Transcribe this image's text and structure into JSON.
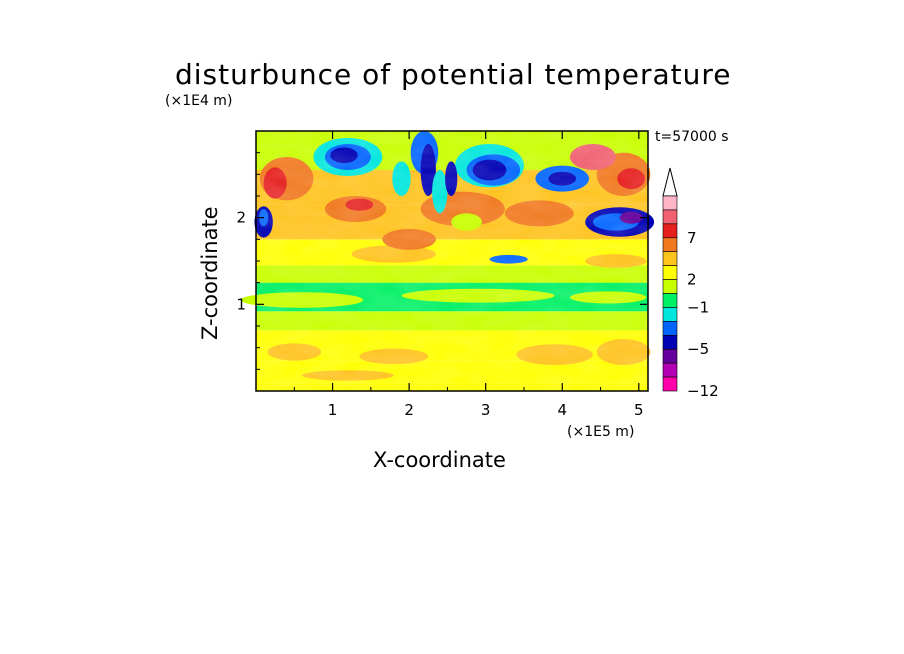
{
  "chart_data": {
    "type": "heatmap",
    "title": "disturbunce of potential temperature",
    "xlabel": "X-coordinate",
    "ylabel": "Z-coordinate",
    "x_unit": "(×1E5 m)",
    "y_unit": "(×1E4 m)",
    "time_label": "t=57000 s",
    "xlim": [
      0,
      5.12
    ],
    "ylim": [
      0,
      3
    ],
    "x_ticks": [
      "1",
      "2",
      "3",
      "4",
      "5"
    ],
    "y_ticks": [
      "1",
      "2"
    ],
    "colorbar_labels": [
      "7",
      "2",
      "−1",
      "−5",
      "−12"
    ],
    "colorbar_colors": [
      "#ffb4c8",
      "#f06070",
      "#e61e1e",
      "#f0781e",
      "#ffc31e",
      "#ffff00",
      "#c8ff00",
      "#00f064",
      "#00e6dc",
      "#0064ff",
      "#0000b4",
      "#64009b",
      "#b400b4",
      "#ff00aa"
    ]
  }
}
